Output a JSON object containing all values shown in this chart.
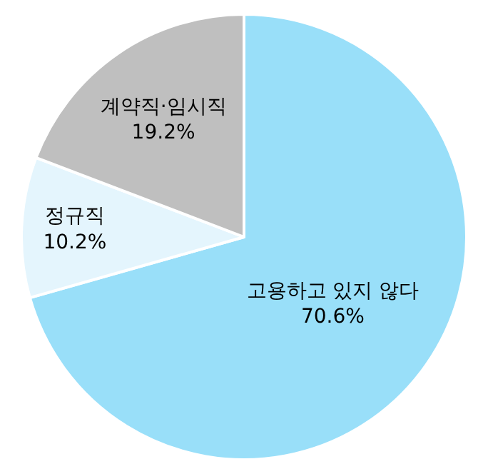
{
  "chart_data": {
    "type": "pie",
    "categories": [
      "고용하고 있지 않다",
      "정규직",
      "계약직·임시직"
    ],
    "values": [
      70.6,
      10.2,
      19.2
    ],
    "value_labels": [
      "70.6%",
      "10.2%",
      "19.2%"
    ],
    "colors": [
      "#99dff9",
      "#e4f5fd",
      "#bfbfbf"
    ]
  }
}
